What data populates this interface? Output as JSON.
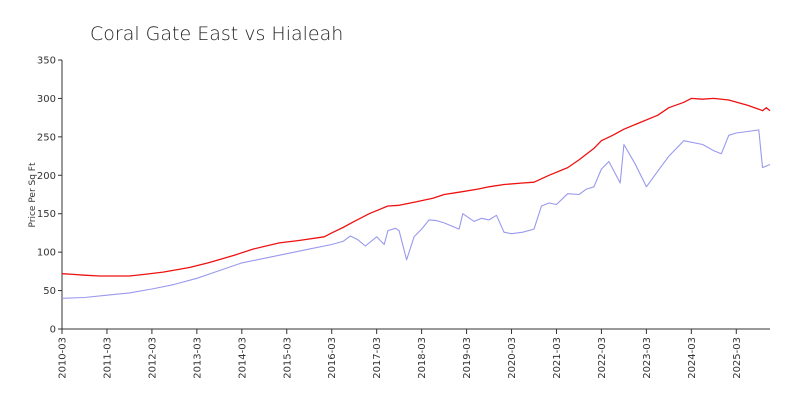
{
  "chart_data": {
    "type": "line",
    "title": "Coral Gate East vs Hialeah",
    "ylabel": "Price Per Sq Ft",
    "xlabel": "",
    "ylim": [
      0,
      350
    ],
    "yticks": [
      0,
      50,
      100,
      150,
      200,
      250,
      300,
      350
    ],
    "xlim": [
      "2010-03",
      "2025-12"
    ],
    "xticks": [
      "2010-03",
      "2011-03",
      "2012-03",
      "2013-03",
      "2014-03",
      "2015-03",
      "2016-03",
      "2017-03",
      "2018-03",
      "2019-03",
      "2020-03",
      "2021-03",
      "2022-03",
      "2023-03",
      "2024-03",
      "2025-03"
    ],
    "grid": false,
    "legend": "none",
    "series": [
      {
        "color": "#ee1111",
        "points": [
          [
            "2010-03",
            72
          ],
          [
            "2010-06",
            71
          ],
          [
            "2010-09",
            70
          ],
          [
            "2011-01",
            69
          ],
          [
            "2011-06",
            69
          ],
          [
            "2011-09",
            69
          ],
          [
            "2012-01",
            71
          ],
          [
            "2012-06",
            74
          ],
          [
            "2013-01",
            80
          ],
          [
            "2013-06",
            86
          ],
          [
            "2014-01",
            96
          ],
          [
            "2014-06",
            104
          ],
          [
            "2015-01",
            112
          ],
          [
            "2015-06",
            115
          ],
          [
            "2016-01",
            120
          ],
          [
            "2016-03",
            125
          ],
          [
            "2016-06",
            132
          ],
          [
            "2016-09",
            140
          ],
          [
            "2017-01",
            150
          ],
          [
            "2017-06",
            160
          ],
          [
            "2017-09",
            161
          ],
          [
            "2018-01",
            165
          ],
          [
            "2018-06",
            170
          ],
          [
            "2018-09",
            175
          ],
          [
            "2019-01",
            178
          ],
          [
            "2019-06",
            182
          ],
          [
            "2019-09",
            185
          ],
          [
            "2020-01",
            188
          ],
          [
            "2020-06",
            190
          ],
          [
            "2020-09",
            191
          ],
          [
            "2021-01",
            200
          ],
          [
            "2021-06",
            210
          ],
          [
            "2021-09",
            220
          ],
          [
            "2022-01",
            235
          ],
          [
            "2022-03",
            245
          ],
          [
            "2022-06",
            252
          ],
          [
            "2022-09",
            260
          ],
          [
            "2023-01",
            268
          ],
          [
            "2023-06",
            278
          ],
          [
            "2023-09",
            288
          ],
          [
            "2024-01",
            295
          ],
          [
            "2024-03",
            300
          ],
          [
            "2024-06",
            299
          ],
          [
            "2024-09",
            300
          ],
          [
            "2025-01",
            298
          ],
          [
            "2025-06",
            291
          ],
          [
            "2025-09",
            286
          ],
          [
            "2025-10",
            284
          ],
          [
            "2025-11",
            288
          ],
          [
            "2025-12",
            284
          ]
        ]
      },
      {
        "color": "#9999ee",
        "points": [
          [
            "2010-03",
            40
          ],
          [
            "2010-09",
            41
          ],
          [
            "2011-03",
            44
          ],
          [
            "2011-09",
            47
          ],
          [
            "2012-03",
            52
          ],
          [
            "2012-09",
            58
          ],
          [
            "2013-03",
            66
          ],
          [
            "2013-09",
            76
          ],
          [
            "2014-03",
            86
          ],
          [
            "2014-09",
            92
          ],
          [
            "2015-03",
            98
          ],
          [
            "2015-09",
            104
          ],
          [
            "2016-03",
            110
          ],
          [
            "2016-06",
            114
          ],
          [
            "2016-08",
            121
          ],
          [
            "2016-10",
            116
          ],
          [
            "2016-12",
            108
          ],
          [
            "2017-03",
            120
          ],
          [
            "2017-05",
            110
          ],
          [
            "2017-06",
            128
          ],
          [
            "2017-08",
            131
          ],
          [
            "2017-09",
            128
          ],
          [
            "2017-11",
            90
          ],
          [
            "2018-01",
            120
          ],
          [
            "2018-03",
            130
          ],
          [
            "2018-05",
            142
          ],
          [
            "2018-07",
            141
          ],
          [
            "2018-09",
            138
          ],
          [
            "2019-01",
            130
          ],
          [
            "2019-02",
            150
          ],
          [
            "2019-05",
            140
          ],
          [
            "2019-07",
            144
          ],
          [
            "2019-09",
            142
          ],
          [
            "2019-11",
            148
          ],
          [
            "2020-01",
            126
          ],
          [
            "2020-03",
            124
          ],
          [
            "2020-06",
            126
          ],
          [
            "2020-09",
            130
          ],
          [
            "2020-11",
            160
          ],
          [
            "2021-01",
            164
          ],
          [
            "2021-03",
            162
          ],
          [
            "2021-06",
            176
          ],
          [
            "2021-09",
            175
          ],
          [
            "2021-11",
            182
          ],
          [
            "2022-01",
            185
          ],
          [
            "2022-03",
            208
          ],
          [
            "2022-05",
            218
          ],
          [
            "2022-08",
            190
          ],
          [
            "2022-09",
            240
          ],
          [
            "2022-12",
            215
          ],
          [
            "2023-03",
            185
          ],
          [
            "2023-06",
            205
          ],
          [
            "2023-09",
            225
          ],
          [
            "2024-01",
            245
          ],
          [
            "2024-06",
            240
          ],
          [
            "2024-09",
            232
          ],
          [
            "2024-11",
            228
          ],
          [
            "2025-01",
            252
          ],
          [
            "2025-03",
            255
          ],
          [
            "2025-06",
            257
          ],
          [
            "2025-09",
            259
          ],
          [
            "2025-10",
            210
          ],
          [
            "2025-12",
            214
          ]
        ]
      }
    ]
  }
}
